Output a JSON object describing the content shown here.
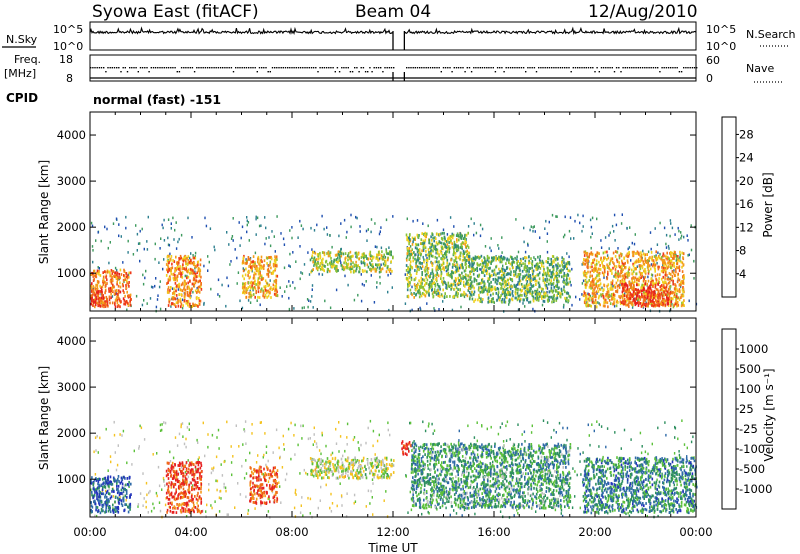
{
  "header": {
    "station": "Syowa East (fitACF)",
    "beam": "Beam 04",
    "date": "12/Aug/2010"
  },
  "aux": {
    "nsky_label": "N.Sky",
    "nsky_ticks": [
      "10^5",
      "10^0"
    ],
    "nsearch_label": "N.Search",
    "nsearch_ticks": [
      "10^5",
      "10^0"
    ],
    "freq_label": "Freq.",
    "freq_unit": "[MHz]",
    "freq_ticks": [
      "18",
      "8"
    ],
    "nave_label": "Nave",
    "nave_ticks": [
      "60",
      "0"
    ],
    "cpid_label": "CPID",
    "cpid_text": "normal (fast) -151"
  },
  "chart_data": [
    {
      "type": "heatmap",
      "name": "power",
      "ylabel": "Slant Range [km]",
      "xlabel": "",
      "x_ticks": [
        "00:00",
        "04:00",
        "08:00",
        "12:00",
        "16:00",
        "20:00",
        "00:00"
      ],
      "xlim_hours": [
        0,
        24
      ],
      "ylim": [
        180,
        4500
      ],
      "y_ticks": [
        "1000",
        "2000",
        "3000",
        "4000"
      ],
      "y_tick_values": [
        1000,
        2000,
        3000,
        4000
      ],
      "colorbar": {
        "label": "Power [dB]",
        "ticks": [
          "4",
          "8",
          "12",
          "16",
          "20",
          "24",
          "28"
        ],
        "tick_values": [
          4,
          8,
          12,
          16,
          20,
          24,
          28
        ],
        "range": [
          0,
          31
        ],
        "colors": [
          "#1c1cff",
          "#1f4fb0",
          "#2d7f8f",
          "#3e9a5e",
          "#88c236",
          "#f0d11f",
          "#f49e1b",
          "#f2761a",
          "#ee3a19",
          "#e61e1e"
        ]
      },
      "echo_regions": [
        {
          "t0": 0.0,
          "t1": 1.6,
          "r0": 300,
          "r1": 1100,
          "level": 0.75
        },
        {
          "t0": 0.0,
          "t1": 0.6,
          "r0": 300,
          "r1": 700,
          "level": 0.85
        },
        {
          "t0": 3.0,
          "t1": 4.4,
          "r0": 300,
          "r1": 1400,
          "level": 0.7
        },
        {
          "t0": 6.0,
          "t1": 7.4,
          "r0": 500,
          "r1": 1400,
          "level": 0.65
        },
        {
          "t0": 8.7,
          "t1": 12.0,
          "r0": 1050,
          "r1": 1500,
          "level": 0.5
        },
        {
          "t0": 12.5,
          "t1": 15.0,
          "r0": 500,
          "r1": 1900,
          "level": 0.45
        },
        {
          "t0": 15.0,
          "t1": 19.0,
          "r0": 400,
          "r1": 1400,
          "level": 0.4
        },
        {
          "t0": 19.5,
          "t1": 23.5,
          "r0": 300,
          "r1": 1500,
          "level": 0.65
        },
        {
          "t0": 21.0,
          "t1": 23.0,
          "r0": 300,
          "r1": 800,
          "level": 0.85
        }
      ]
    },
    {
      "type": "heatmap",
      "name": "velocity",
      "ylabel": "Slant Range [km]",
      "xlabel": "Time UT",
      "x_ticks": [
        "00:00",
        "04:00",
        "08:00",
        "12:00",
        "16:00",
        "20:00",
        "00:00"
      ],
      "xlim_hours": [
        0,
        24
      ],
      "ylim": [
        180,
        4500
      ],
      "y_ticks": [
        "1000",
        "2000",
        "3000",
        "4000"
      ],
      "y_tick_values": [
        1000,
        2000,
        3000,
        4000
      ],
      "colorbar": {
        "label": "Velocity [m s⁻¹]",
        "ticks": [
          "1000",
          "500",
          "100",
          "25",
          "-25",
          "-100",
          "-500",
          "-1000"
        ],
        "colors": [
          "#2233bb",
          "#2f6aa8",
          "#2e8f5f",
          "#5cc13a",
          "#c0c0c0",
          "#f4c320",
          "#f49a1b",
          "#f06a18",
          "#e62020"
        ]
      },
      "echo_regions": [
        {
          "t0": 0.0,
          "t1": 1.6,
          "r0": 300,
          "r1": 1100,
          "level": 0.15
        },
        {
          "t0": 3.0,
          "t1": 4.4,
          "r0": 300,
          "r1": 1400,
          "level": 0.9
        },
        {
          "t0": 6.3,
          "t1": 7.4,
          "r0": 500,
          "r1": 1300,
          "level": 0.88
        },
        {
          "t0": 8.7,
          "t1": 12.0,
          "r0": 1050,
          "r1": 1500,
          "level": 0.5
        },
        {
          "t0": 12.3,
          "t1": 12.7,
          "r0": 1550,
          "r1": 1850,
          "level": 0.95
        },
        {
          "t0": 12.7,
          "t1": 19.0,
          "r0": 400,
          "r1": 1800,
          "level": 0.3
        },
        {
          "t0": 19.5,
          "t1": 24.0,
          "r0": 300,
          "r1": 1500,
          "level": 0.25
        }
      ]
    }
  ]
}
